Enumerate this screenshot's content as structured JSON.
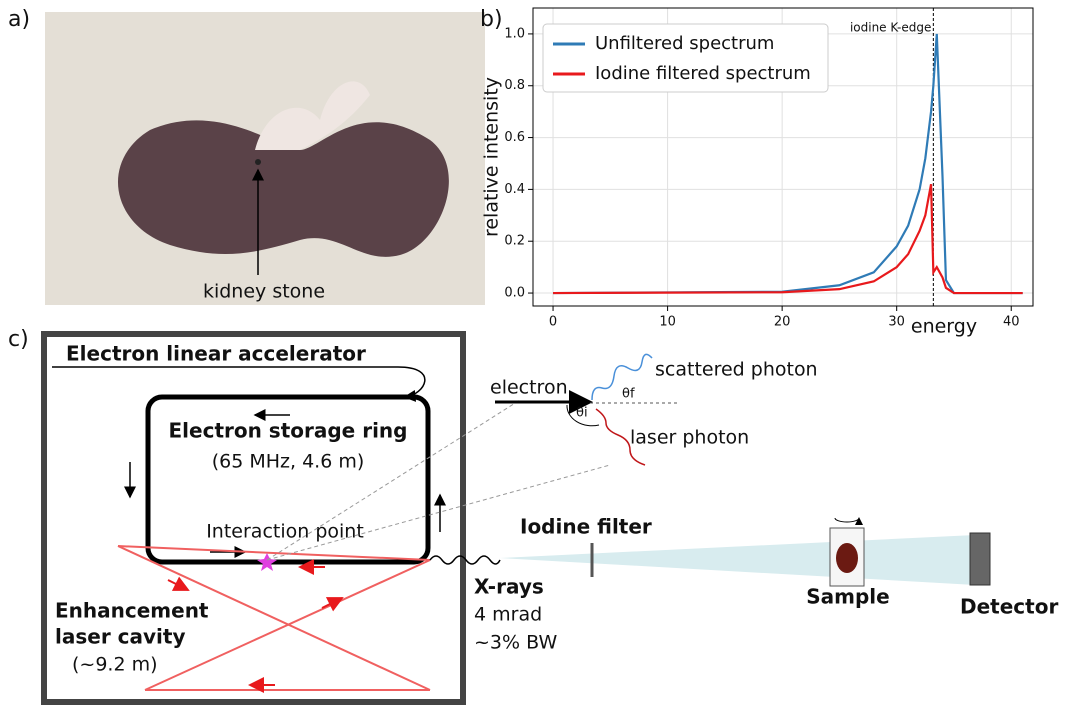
{
  "panel_labels": [
    "a)",
    "b)",
    "c)"
  ],
  "photo": {
    "annotation": "kidney stone"
  },
  "chart_data": {
    "type": "line",
    "x_label": "energy",
    "y_label": "relative intensity",
    "x": [
      0,
      20,
      25,
      28,
      30,
      31,
      32,
      32.5,
      33,
      33.2,
      33.5,
      34,
      34.3,
      35,
      41
    ],
    "series": [
      {
        "name": "Unfiltered spectrum",
        "color": "#2f7bb6",
        "values": [
          0,
          0.005,
          0.03,
          0.08,
          0.18,
          0.26,
          0.4,
          0.52,
          0.7,
          0.8,
          1.0,
          0.45,
          0.05,
          0,
          0
        ]
      },
      {
        "name": "Iodine filtered spectrum",
        "color": "#e8191c",
        "values": [
          0,
          0.003,
          0.015,
          0.045,
          0.1,
          0.15,
          0.24,
          0.3,
          0.42,
          0.08,
          0.1,
          0.06,
          0.02,
          0,
          0
        ]
      }
    ],
    "xlim": [
      -1.75,
      41.9
    ],
    "ylim": [
      -0.05,
      1.1
    ],
    "xticks": [
      0,
      10,
      20,
      30,
      40
    ],
    "yticks": [
      {
        "value": 0,
        "label": "0.0"
      },
      {
        "value": 0.2,
        "label": "0.2"
      },
      {
        "value": 0.4,
        "label": "0.4"
      },
      {
        "value": 0.6,
        "label": "0.6"
      },
      {
        "value": 0.8,
        "label": "0.8"
      },
      {
        "value": 1,
        "label": "1.0"
      }
    ],
    "grid": true,
    "legend": "upper left",
    "annotations": [
      {
        "text": "iodine K-edge",
        "x": 33.2
      }
    ]
  },
  "diagram": {
    "linac": "Electron linear accelerator",
    "ring_title": "Electron storage ring",
    "ring_specs": "(65 MHz, 4.6 m)",
    "interaction": "Interaction point",
    "cavity_line1": "Enhancement",
    "cavity_line2": "laser cavity",
    "cavity_size": "(~9.2 m)",
    "electron": "electron",
    "scattered": "scattered photon",
    "laser_photon": "laser photon",
    "theta_f": "θf",
    "theta_i": "θi",
    "filter": "Iodine filter",
    "xrays": "X-rays",
    "divergence": "4 mrad",
    "bandwidth": "~3% BW",
    "sample": "Sample",
    "detector": "Detector"
  }
}
